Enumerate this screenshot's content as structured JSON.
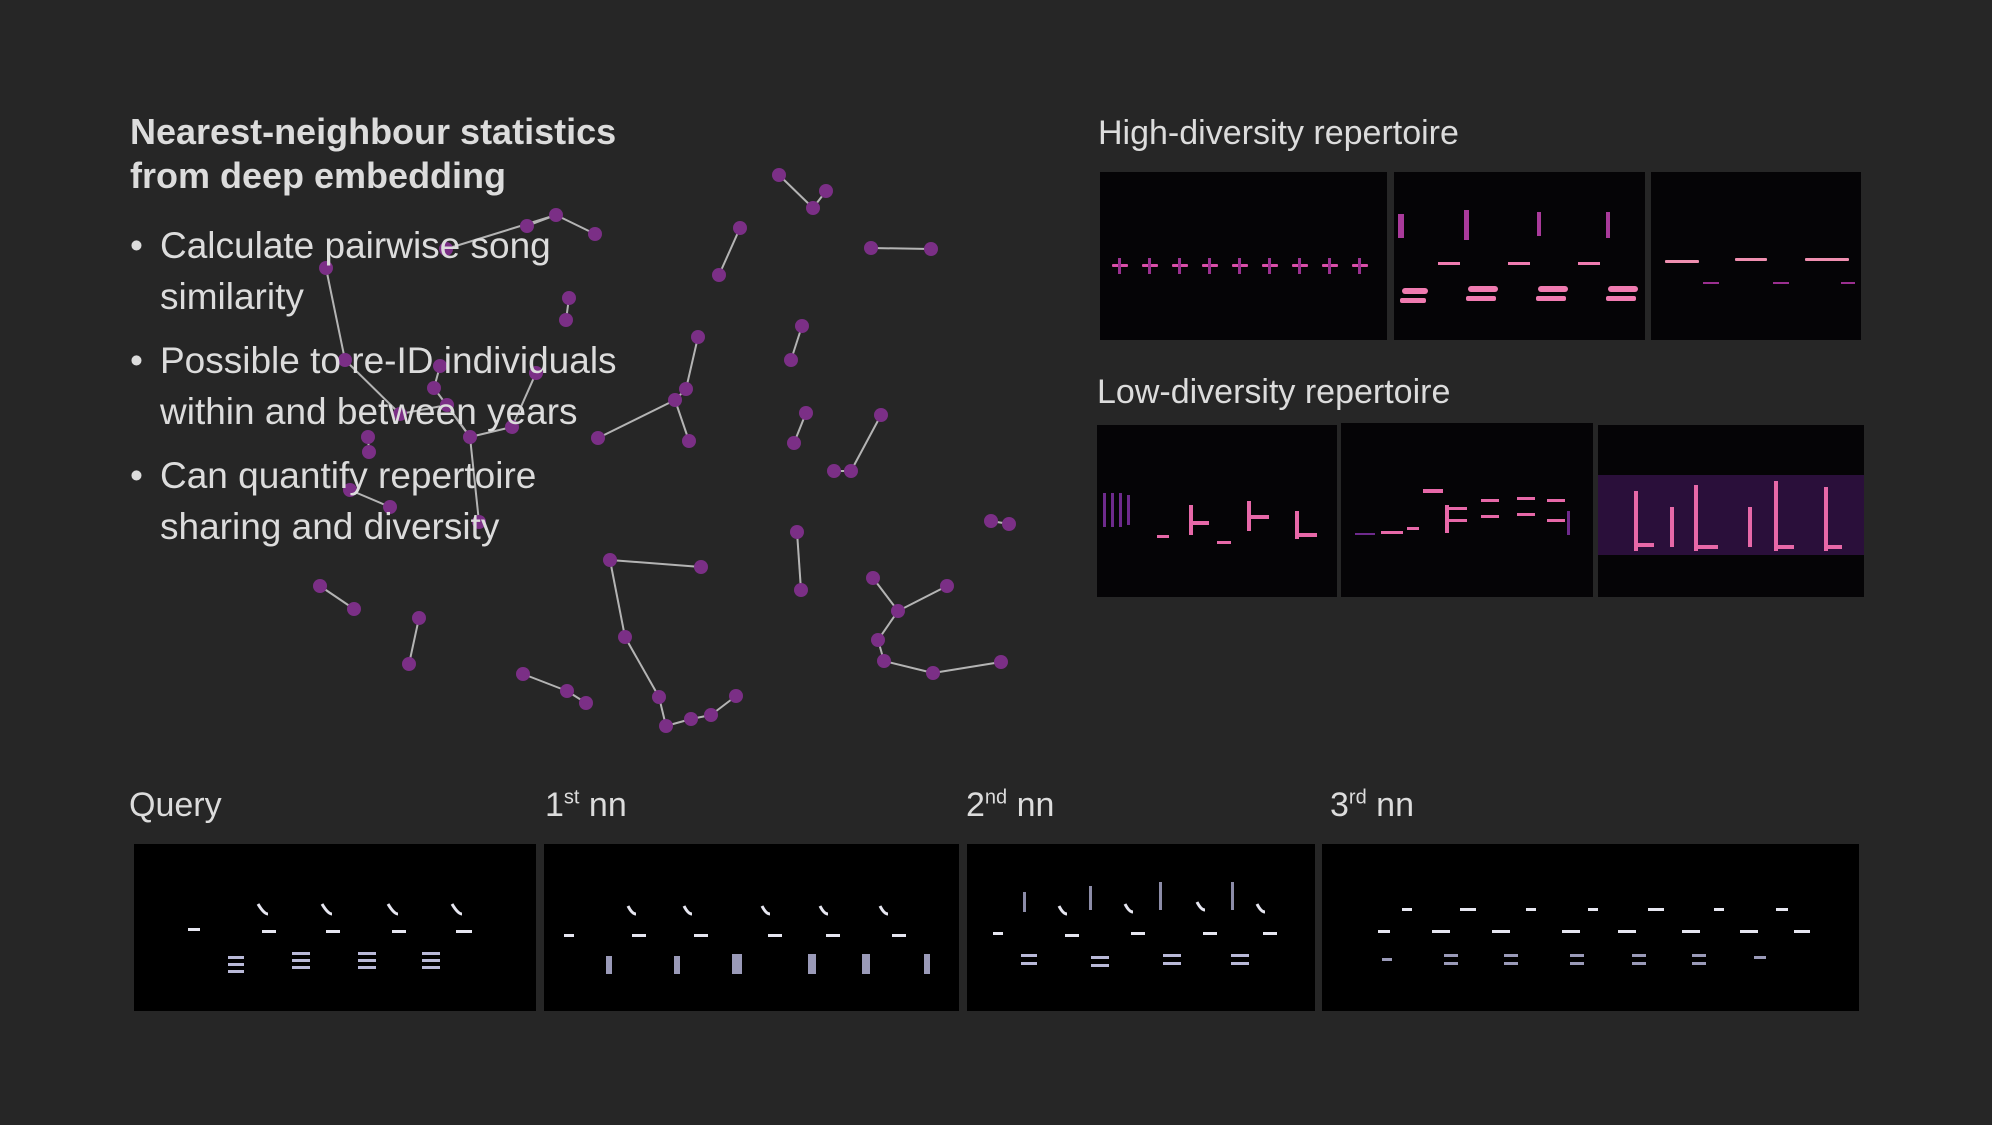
{
  "title": {
    "line1": "Nearest-neighbour statistics",
    "line2": "from deep embedding"
  },
  "bullets": [
    {
      "line1": "Calculate pairwise song",
      "line2": "similarity"
    },
    {
      "line1": "Possible to re-ID individuals",
      "line2": "within and between years"
    },
    {
      "line1": "Can quantify repertoire",
      "line2": "sharing and diversity"
    }
  ],
  "high_diversity_label": "High-diversity repertoire",
  "low_diversity_label": "Low-diversity repertoire",
  "query_label": "Query",
  "nn": [
    {
      "num": "1",
      "sup": "st",
      "suffix": " nn"
    },
    {
      "num": "2",
      "sup": "nd",
      "suffix": " nn"
    },
    {
      "num": "3",
      "sup": "rd",
      "suffix": " nn"
    }
  ],
  "colors": {
    "background": "#262626",
    "node": "#7b2f86",
    "edge": "#b4b4b4",
    "spectrogram_bg": "#050406",
    "magma_hot": "#f08fb0",
    "magma_mid": "#c13fa6"
  }
}
